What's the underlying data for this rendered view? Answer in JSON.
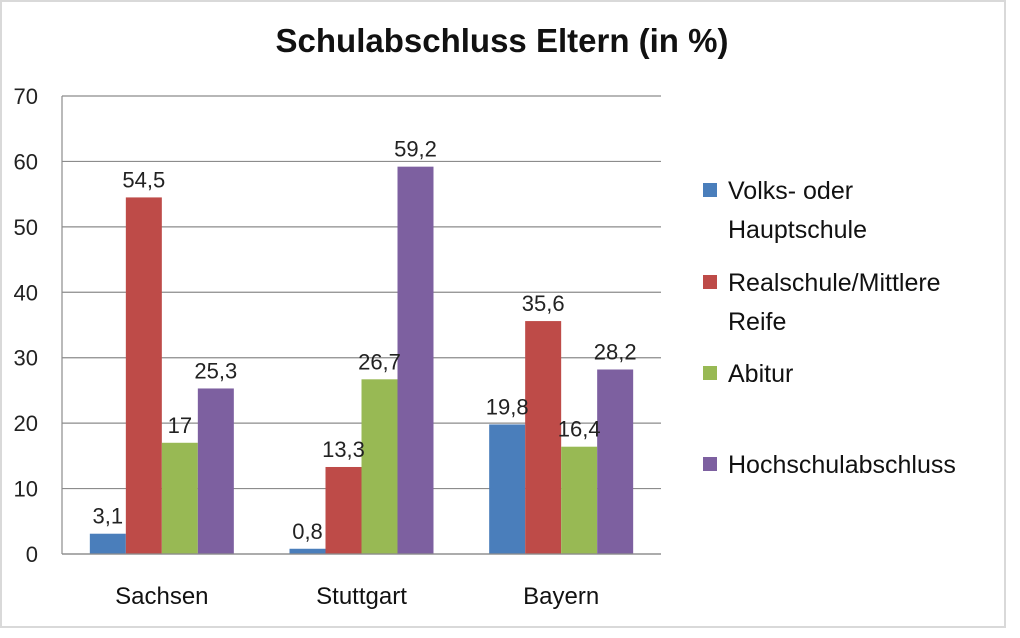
{
  "chart_data": {
    "type": "bar",
    "title": "Schulabschluss Eltern (in %)",
    "xlabel": "",
    "ylabel": "",
    "categories": [
      "Sachsen",
      "Stuttgart",
      "Bayern"
    ],
    "ylim": [
      0,
      70
    ],
    "yticks": [
      0,
      10,
      20,
      30,
      40,
      50,
      60,
      70
    ],
    "grid": true,
    "legend_position": "right",
    "series": [
      {
        "name": "Volks- oder Hauptschule",
        "legend_lines": [
          "Volks- oder",
          "Hauptschule"
        ],
        "color": "#4a7ebb",
        "values": [
          3.1,
          0.8,
          19.8
        ],
        "labels": [
          "3,1",
          "0,8",
          "19,8"
        ]
      },
      {
        "name": "Realschule/Mittlere Reife",
        "legend_lines": [
          "Realschule/Mittlere",
          "Reife"
        ],
        "color": "#be4b48",
        "values": [
          54.5,
          13.3,
          35.6
        ],
        "labels": [
          "54,5",
          "13,3",
          "35,6"
        ]
      },
      {
        "name": "Abitur",
        "legend_lines": [
          "Abitur"
        ],
        "color": "#98b954",
        "values": [
          17,
          26.7,
          16.4
        ],
        "labels": [
          "17",
          "26,7",
          "16,4"
        ]
      },
      {
        "name": "Hochschulabschluss",
        "legend_lines": [
          "Hochschulabschluss"
        ],
        "color": "#7d60a0",
        "values": [
          25.3,
          59.2,
          28.2
        ],
        "labels": [
          "25,3",
          "59,2",
          "28,2"
        ]
      }
    ]
  }
}
